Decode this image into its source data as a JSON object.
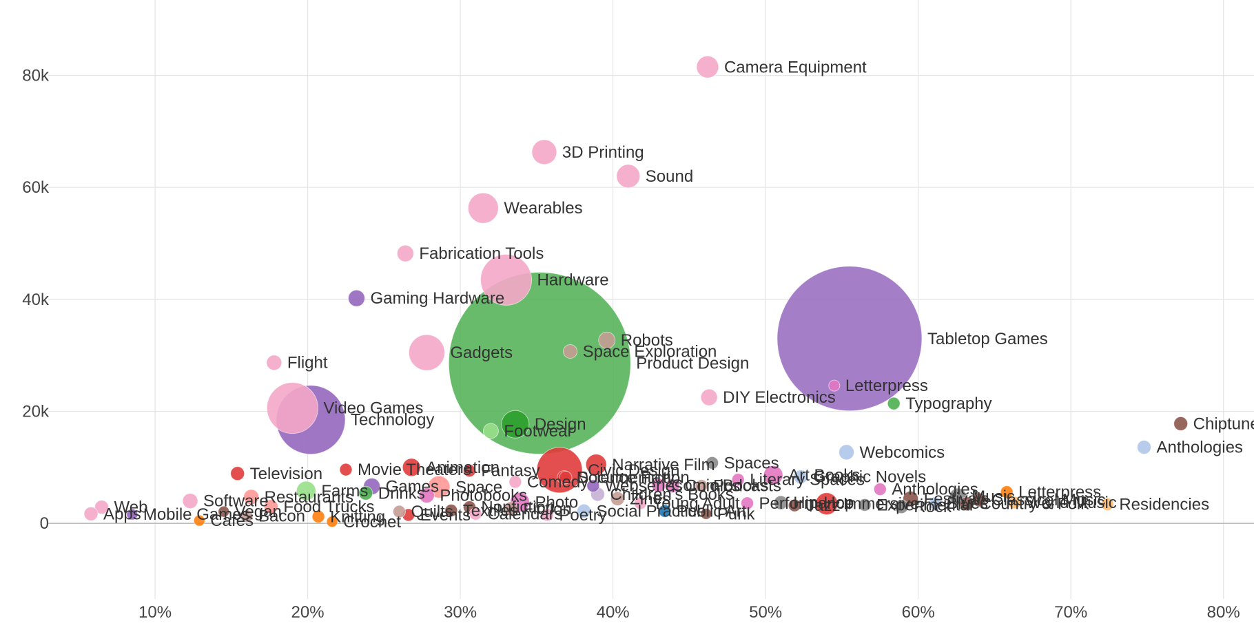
{
  "chart_data": {
    "type": "scatter",
    "xlim": [
      0.03,
      0.82
    ],
    "ylim": [
      -13500,
      91000
    ],
    "x_ticks": [
      0.1,
      0.2,
      0.3,
      0.4,
      0.5,
      0.6,
      0.7,
      0.8
    ],
    "x_tick_labels": [
      "10%",
      "20%",
      "30%",
      "40%",
      "50%",
      "60%",
      "70%",
      "80%"
    ],
    "y_ticks": [
      0,
      20000,
      40000,
      60000,
      80000
    ],
    "y_tick_labels": [
      "0",
      "20k",
      "40k",
      "60k",
      "80k"
    ],
    "ylabel": "",
    "grid": true,
    "legend": "none",
    "colors": {
      "pink": "#f4a7c8",
      "purple": "#9467bd",
      "green": "#4caf50",
      "darkgreen": "#2ca02c",
      "red": "#e03c3c",
      "brown": "#8c564b",
      "gray": "#8a8a8a",
      "lightblue": "#aec7e8",
      "orange": "#ff7f0e",
      "lightorange": "#ffbb78",
      "lightgreen": "#98df8a",
      "magenta": "#e377c2",
      "blue": "#1f77b4",
      "salmon": "#ff9896",
      "rosybrown": "#c49c94",
      "lavender": "#c5b0d5"
    },
    "points": [
      {
        "label": "Camera Equipment",
        "x": 0.462,
        "y": 81500,
        "r": 16,
        "color": "pink"
      },
      {
        "label": "3D Printing",
        "x": 0.355,
        "y": 66300,
        "r": 18,
        "color": "pink"
      },
      {
        "label": "Sound",
        "x": 0.41,
        "y": 62000,
        "r": 17,
        "color": "pink"
      },
      {
        "label": "Wearables",
        "x": 0.315,
        "y": 56300,
        "r": 22,
        "color": "pink"
      },
      {
        "label": "Fabrication Tools",
        "x": 0.264,
        "y": 48200,
        "r": 12,
        "color": "pink"
      },
      {
        "label": "Hardware",
        "x": 0.33,
        "y": 43500,
        "r": 37,
        "color": "pink"
      },
      {
        "label": "Gaming Hardware",
        "x": 0.232,
        "y": 40200,
        "r": 12,
        "color": "purple"
      },
      {
        "label": "Tabletop Games",
        "x": 0.555,
        "y": 33000,
        "r": 105,
        "color": "purple"
      },
      {
        "label": "Robots",
        "x": 0.396,
        "y": 32700,
        "r": 12,
        "color": "rosybrown"
      },
      {
        "label": "Gadgets",
        "x": 0.278,
        "y": 30500,
        "r": 26,
        "color": "pink"
      },
      {
        "label": "Space Exploration",
        "x": 0.372,
        "y": 30700,
        "r": 10,
        "color": "rosybrown"
      },
      {
        "label": "Flight",
        "x": 0.178,
        "y": 28700,
        "r": 11,
        "color": "pink"
      },
      {
        "label": "Product Design",
        "x": 0.352,
        "y": 28600,
        "r": 132,
        "color": "green"
      },
      {
        "label": "Letterpress",
        "x": 0.545,
        "y": 24600,
        "r": 8,
        "color": "magenta"
      },
      {
        "label": "DIY Electronics",
        "x": 0.463,
        "y": 22500,
        "r": 12,
        "color": "pink"
      },
      {
        "label": "Typography",
        "x": 0.584,
        "y": 21400,
        "r": 9,
        "color": "green"
      },
      {
        "label": "Technology",
        "x": 0.202,
        "y": 18500,
        "r": 50,
        "color": "purple"
      },
      {
        "label": "Video Games",
        "x": 0.19,
        "y": 20600,
        "r": 37,
        "color": "pink"
      },
      {
        "label": "Design",
        "x": 0.336,
        "y": 17700,
        "r": 20,
        "color": "darkgreen"
      },
      {
        "label": "Footwear",
        "x": 0.32,
        "y": 16500,
        "r": 11,
        "color": "lightgreen"
      },
      {
        "label": "Chiptune",
        "x": 0.772,
        "y": 17800,
        "r": 10,
        "color": "brown"
      },
      {
        "label": "Anthologies",
        "x": 0.748,
        "y": 13600,
        "r": 10,
        "color": "lightblue"
      },
      {
        "label": "Webcomics",
        "x": 0.553,
        "y": 12700,
        "r": 11,
        "color": "lightblue"
      },
      {
        "label": "Civic Design",
        "x": 0.365,
        "y": 9500,
        "r": 33,
        "color": "red"
      },
      {
        "label": "Narrative Film",
        "x": 0.389,
        "y": 10500,
        "r": 15,
        "color": "red"
      },
      {
        "label": "Spaces",
        "x": 0.465,
        "y": 10800,
        "r": 9,
        "color": "gray"
      },
      {
        "label": "Animation",
        "x": 0.268,
        "y": 10000,
        "r": 13,
        "color": "red"
      },
      {
        "label": "Movie Theaters",
        "x": 0.225,
        "y": 9600,
        "r": 9,
        "color": "red"
      },
      {
        "label": "Fantasy",
        "x": 0.306,
        "y": 9400,
        "r": 9,
        "color": "red"
      },
      {
        "label": "Television",
        "x": 0.154,
        "y": 8900,
        "r": 10,
        "color": "red"
      },
      {
        "label": "Art Books",
        "x": 0.505,
        "y": 8600,
        "r": 14,
        "color": "magenta"
      },
      {
        "label": "Graphic Novels",
        "x": 0.523,
        "y": 8300,
        "r": 10,
        "color": "lightblue"
      },
      {
        "label": "Documentary",
        "x": 0.368,
        "y": 8200,
        "r": 10,
        "color": "red"
      },
      {
        "label": "Literary Spaces",
        "x": 0.482,
        "y": 7800,
        "r": 9,
        "color": "magenta"
      },
      {
        "label": "Science Fiction",
        "x": 0.369,
        "y": 8200,
        "r": 9,
        "color": "red"
      },
      {
        "label": "Comedy",
        "x": 0.336,
        "y": 7400,
        "r": 9,
        "color": "pink"
      },
      {
        "label": "Space",
        "x": 0.286,
        "y": 6500,
        "r": 16,
        "color": "salmon"
      },
      {
        "label": "Games",
        "x": 0.242,
        "y": 6600,
        "r": 12,
        "color": "purple"
      },
      {
        "label": "Comics",
        "x": 0.439,
        "y": 6700,
        "r": 10,
        "color": "magenta"
      },
      {
        "label": "Podcasts",
        "x": 0.458,
        "y": 6700,
        "r": 9,
        "color": "rosybrown"
      },
      {
        "label": "Comic Books",
        "x": 0.43,
        "y": 6800,
        "r": 10,
        "color": "magenta"
      },
      {
        "label": "Webseries",
        "x": 0.387,
        "y": 6700,
        "r": 9,
        "color": "purple"
      },
      {
        "label": "Anthologies",
        "x": 0.575,
        "y": 6100,
        "r": 9,
        "color": "magenta"
      },
      {
        "label": "Letterpress",
        "x": 0.658,
        "y": 5600,
        "r": 9,
        "color": "orange"
      },
      {
        "label": "Software",
        "x": 0.123,
        "y": 4000,
        "r": 11,
        "color": "pink"
      },
      {
        "label": "Restaurants",
        "x": 0.163,
        "y": 4700,
        "r": 11,
        "color": "salmon"
      },
      {
        "label": "Festivals",
        "x": 0.595,
        "y": 4400,
        "r": 11,
        "color": "brown"
      },
      {
        "label": "Residencies",
        "x": 0.724,
        "y": 3400,
        "r": 9,
        "color": "lightorange"
      },
      {
        "label": "Web",
        "x": 0.065,
        "y": 2900,
        "r": 10,
        "color": "pink"
      },
      {
        "label": "Apps",
        "x": 0.058,
        "y": 1700,
        "r": 10,
        "color": "pink"
      },
      {
        "label": "Mobile Games",
        "x": 0.085,
        "y": 1600,
        "r": 8,
        "color": "purple"
      },
      {
        "label": "Cafes",
        "x": 0.129,
        "y": 500,
        "r": 8,
        "color": "orange"
      },
      {
        "label": "Crochet",
        "x": 0.216,
        "y": 300,
        "r": 8,
        "color": "orange"
      },
      {
        "label": "Punk",
        "x": 0.461,
        "y": 1700,
        "r": 8,
        "color": "brown"
      },
      {
        "label": "Immersive",
        "x": 0.54,
        "y": 3500,
        "r": 16,
        "color": "red"
      },
      {
        "label": "Experimental",
        "x": 0.565,
        "y": 3300,
        "r": 9,
        "color": "gray"
      },
      {
        "label": "Performance",
        "x": 0.488,
        "y": 3600,
        "r": 9,
        "color": "magenta"
      },
      {
        "label": "Poetry",
        "x": 0.357,
        "y": 1500,
        "r": 9,
        "color": "pink"
      },
      {
        "label": "Social Practice",
        "x": 0.381,
        "y": 2200,
        "r": 10,
        "color": "lightblue"
      },
      {
        "label": "Photo",
        "x": 0.339,
        "y": 3800,
        "r": 14,
        "color": "magenta"
      },
      {
        "label": "Public Art",
        "x": 0.434,
        "y": 2200,
        "r": 9,
        "color": "blue"
      },
      {
        "label": "Hip-Hop",
        "x": 0.51,
        "y": 3700,
        "r": 10,
        "color": "gray"
      },
      {
        "label": "Jazz",
        "x": 0.519,
        "y": 3200,
        "r": 9,
        "color": "brown"
      },
      {
        "label": "Music",
        "x": 0.626,
        "y": 4800,
        "r": 12,
        "color": "gray"
      },
      {
        "label": "Classical Music",
        "x": 0.64,
        "y": 4200,
        "r": 10,
        "color": "brown"
      },
      {
        "label": "World Music",
        "x": 0.663,
        "y": 3700,
        "r": 9,
        "color": "lightorange"
      },
      {
        "label": "Rock",
        "x": 0.589,
        "y": 3000,
        "r": 10,
        "color": "gray"
      },
      {
        "label": "Blues",
        "x": 0.611,
        "y": 3600,
        "r": 9,
        "color": "lightblue"
      },
      {
        "label": "Country & Folk",
        "x": 0.632,
        "y": 3500,
        "r": 10,
        "color": "brown"
      },
      {
        "label": "Vegan",
        "x": 0.145,
        "y": 2100,
        "r": 8,
        "color": "brown"
      },
      {
        "label": "Farms",
        "x": 0.199,
        "y": 5800,
        "r": 14,
        "color": "lightgreen"
      },
      {
        "label": "Drinks",
        "x": 0.238,
        "y": 5400,
        "r": 10,
        "color": "green"
      },
      {
        "label": "Bacon",
        "x": 0.16,
        "y": 1300,
        "r": 9,
        "color": "rosybrown"
      },
      {
        "label": "Food Trucks",
        "x": 0.176,
        "y": 3000,
        "r": 10,
        "color": "salmon"
      },
      {
        "label": "Events",
        "x": 0.266,
        "y": 1500,
        "r": 9,
        "color": "red"
      },
      {
        "label": "Knitting",
        "x": 0.207,
        "y": 1200,
        "r": 9,
        "color": "orange"
      },
      {
        "label": "Quilts",
        "x": 0.26,
        "y": 2100,
        "r": 9,
        "color": "rosybrown"
      },
      {
        "label": "Textiles",
        "x": 0.294,
        "y": 2300,
        "r": 9,
        "color": "brown"
      },
      {
        "label": "Zines",
        "x": 0.403,
        "y": 4400,
        "r": 10,
        "color": "rosybrown"
      },
      {
        "label": "Young Adult",
        "x": 0.418,
        "y": 3600,
        "r": 9,
        "color": "pink"
      },
      {
        "label": "Fiction",
        "x": 0.333,
        "y": 2600,
        "r": 10,
        "color": "rosybrown"
      },
      {
        "label": "Nonfiction",
        "x": 0.306,
        "y": 2900,
        "r": 9,
        "color": "brown"
      },
      {
        "label": "Children's Books",
        "x": 0.39,
        "y": 5200,
        "r": 10,
        "color": "lavender"
      },
      {
        "label": "Photobooks",
        "x": 0.278,
        "y": 5000,
        "r": 11,
        "color": "magenta"
      },
      {
        "label": "Calendars",
        "x": 0.31,
        "y": 1700,
        "r": 9,
        "color": "pink"
      }
    ]
  }
}
